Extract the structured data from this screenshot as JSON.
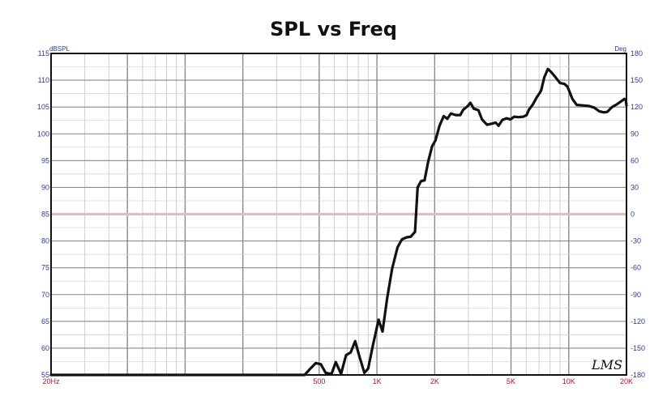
{
  "chart_data": {
    "type": "line",
    "title": "SPL vs Freq",
    "x_scale": "log",
    "xlim": [
      20,
      20000
    ],
    "x_tick_labels": [
      {
        "value": 20,
        "label": "20Hz"
      },
      {
        "value": 500,
        "label": "500"
      },
      {
        "value": 1000,
        "label": "1K"
      },
      {
        "value": 2000,
        "label": "2K"
      },
      {
        "value": 5000,
        "label": "5K"
      },
      {
        "value": 10000,
        "label": "10K"
      },
      {
        "value": 20000,
        "label": "20K"
      }
    ],
    "y_left": {
      "unit": "dBSPL",
      "ylim": [
        55,
        115
      ],
      "ticks": [
        "115",
        "110",
        "105",
        "100",
        "95",
        "90",
        "85",
        "80",
        "75",
        "70",
        "65",
        "60",
        "55"
      ]
    },
    "y_right": {
      "unit": "Deg",
      "ylim": [
        -180,
        180
      ],
      "ticks": [
        "180",
        "150",
        "120",
        "90",
        "60",
        "30",
        "0",
        "-30",
        "-60",
        "-90",
        "-120",
        "-150",
        "-180"
      ]
    },
    "grid": true,
    "reference_line": {
      "y": 85
    },
    "series": [
      {
        "color": "#111111",
        "reference_color": "#e7b8bf",
        "points": [
          [
            20,
            55
          ],
          [
            420,
            55
          ],
          [
            450,
            56.2
          ],
          [
            480,
            57.2
          ],
          [
            510,
            57
          ],
          [
            540,
            55.4
          ],
          [
            580,
            55.2
          ],
          [
            610,
            57.4
          ],
          [
            650,
            55.2
          ],
          [
            690,
            58.7
          ],
          [
            730,
            59.2
          ],
          [
            770,
            61.3
          ],
          [
            810,
            58.5
          ],
          [
            860,
            55.4
          ],
          [
            900,
            56.2
          ],
          [
            950,
            60.3
          ],
          [
            1020,
            65.3
          ],
          [
            1070,
            63.1
          ],
          [
            1130,
            69.3
          ],
          [
            1200,
            74.8
          ],
          [
            1280,
            78.8
          ],
          [
            1350,
            80.3
          ],
          [
            1430,
            80.7
          ],
          [
            1500,
            80.8
          ],
          [
            1580,
            81.7
          ],
          [
            1630,
            90
          ],
          [
            1700,
            91.2
          ],
          [
            1770,
            91.3
          ],
          [
            1850,
            94.8
          ],
          [
            1940,
            97.7
          ],
          [
            2020,
            98.8
          ],
          [
            2120,
            101.5
          ],
          [
            2230,
            103.3
          ],
          [
            2330,
            102.8
          ],
          [
            2430,
            103.8
          ],
          [
            2580,
            103.5
          ],
          [
            2720,
            103.5
          ],
          [
            2820,
            104.5
          ],
          [
            2980,
            105.2
          ],
          [
            3070,
            105.8
          ],
          [
            3200,
            104.7
          ],
          [
            3380,
            104.4
          ],
          [
            3530,
            102.7
          ],
          [
            3750,
            101.7
          ],
          [
            3980,
            101.9
          ],
          [
            4160,
            102.1
          ],
          [
            4310,
            101.5
          ],
          [
            4510,
            102.6
          ],
          [
            4740,
            102.9
          ],
          [
            4970,
            102.7
          ],
          [
            5200,
            103.2
          ],
          [
            5450,
            103.1
          ],
          [
            5800,
            103.2
          ],
          [
            6030,
            103.5
          ],
          [
            6200,
            104.5
          ],
          [
            6500,
            105.5
          ],
          [
            6830,
            106.9
          ],
          [
            7050,
            107.6
          ],
          [
            7180,
            108.1
          ],
          [
            7450,
            110.5
          ],
          [
            7780,
            112.1
          ],
          [
            8060,
            111.6
          ],
          [
            8430,
            110.8
          ],
          [
            9000,
            109.5
          ],
          [
            9500,
            109.3
          ],
          [
            9850,
            108.8
          ],
          [
            10450,
            106.5
          ],
          [
            11000,
            105.4
          ],
          [
            11850,
            105.3
          ],
          [
            12700,
            105.2
          ],
          [
            13550,
            104.9
          ],
          [
            14450,
            104.2
          ],
          [
            15300,
            104
          ],
          [
            15900,
            104.1
          ],
          [
            16600,
            104.8
          ],
          [
            17000,
            105.1
          ],
          [
            17800,
            105.5
          ],
          [
            19000,
            106.2
          ],
          [
            19500,
            106.5
          ],
          [
            19850,
            106.2
          ],
          [
            20000,
            105.3
          ]
        ]
      }
    ]
  },
  "watermark": "LMS"
}
